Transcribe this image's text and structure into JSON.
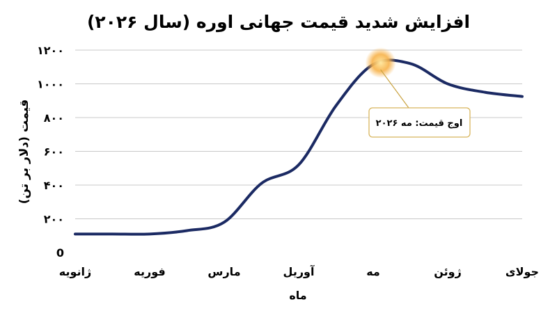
{
  "chart_data": {
    "type": "line",
    "title": "افزایش شدید قیمت جهانی اوره (سال ۲۰۲۶)",
    "ylabel": "قیمت (دلار بر تن)",
    "xlabel": "ماه",
    "ylim": [
      0,
      1200
    ],
    "yticks": [
      0,
      200,
      400,
      600,
      800,
      1000,
      1200
    ],
    "ytick_labels": [
      "0",
      "۲۰۰",
      "۴۰۰",
      "۶۰۰",
      "۸۰۰",
      "۱۰۰۰",
      "۱۲۰۰"
    ],
    "categories": [
      "ژانویه",
      "فوریه",
      "مارس",
      "آوریل",
      "مه",
      "ژوئن",
      "جولای"
    ],
    "x": [
      0,
      0.5,
      1,
      1.5,
      2,
      2.5,
      3,
      3.5,
      4,
      4.5,
      5,
      5.5,
      6
    ],
    "series": [
      {
        "values": [
          110,
          110,
          110,
          130,
          180,
          410,
          520,
          870,
          1115,
          1120,
          1000,
          950,
          925
        ]
      }
    ],
    "grid": true,
    "color": "#1b2a63",
    "annotation": {
      "text": "اوج قیمت: مه ۲۰۲۶",
      "x": 4.1,
      "y": 1125
    }
  }
}
